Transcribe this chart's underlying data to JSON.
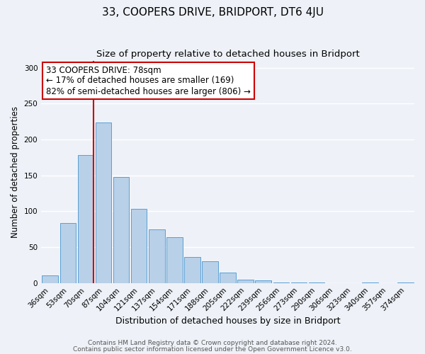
{
  "title": "33, COOPERS DRIVE, BRIDPORT, DT6 4JU",
  "subtitle": "Size of property relative to detached houses in Bridport",
  "xlabel": "Distribution of detached houses by size in Bridport",
  "ylabel": "Number of detached properties",
  "categories": [
    "36sqm",
    "53sqm",
    "70sqm",
    "87sqm",
    "104sqm",
    "121sqm",
    "137sqm",
    "154sqm",
    "171sqm",
    "188sqm",
    "205sqm",
    "222sqm",
    "239sqm",
    "256sqm",
    "273sqm",
    "290sqm",
    "306sqm",
    "323sqm",
    "340sqm",
    "357sqm",
    "374sqm"
  ],
  "values": [
    11,
    84,
    178,
    224,
    148,
    103,
    75,
    64,
    36,
    30,
    15,
    5,
    4,
    1,
    1,
    1,
    0,
    0,
    1,
    0,
    1
  ],
  "bar_color": "#b8d0e8",
  "bar_edge_color": "#5a9fd4",
  "vline_color": "#cc0000",
  "annotation_text": "33 COOPERS DRIVE: 78sqm\n← 17% of detached houses are smaller (169)\n82% of semi-detached houses are larger (806) →",
  "annotation_box_color": "#ffffff",
  "annotation_box_edge_color": "#cc0000",
  "ylim": [
    0,
    310
  ],
  "yticks": [
    0,
    50,
    100,
    150,
    200,
    250,
    300
  ],
  "footer_line1": "Contains HM Land Registry data © Crown copyright and database right 2024.",
  "footer_line2": "Contains public sector information licensed under the Open Government Licence v3.0.",
  "background_color": "#eef2f8",
  "grid_color": "#ffffff",
  "title_fontsize": 11,
  "subtitle_fontsize": 9.5,
  "xlabel_fontsize": 9,
  "ylabel_fontsize": 8.5,
  "tick_fontsize": 7.5,
  "annotation_fontsize": 8.5,
  "footer_fontsize": 6.5
}
